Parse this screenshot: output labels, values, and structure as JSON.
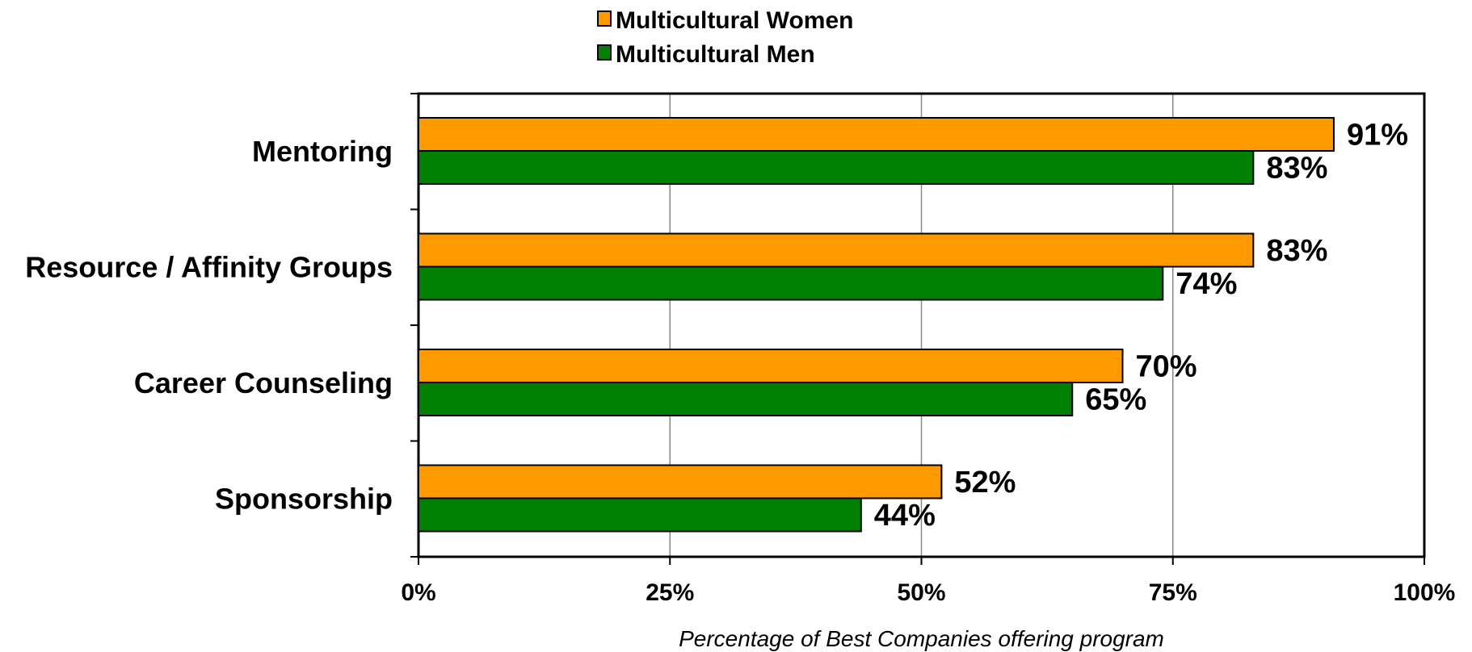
{
  "chart_data": {
    "type": "bar",
    "orientation": "horizontal",
    "title": "",
    "xlabel": "Percentage of Best Companies offering program",
    "ylabel": "",
    "xlim": [
      0,
      100
    ],
    "x_ticks": [
      "0%",
      "25%",
      "50%",
      "75%",
      "100%"
    ],
    "x_tick_values": [
      0,
      25,
      50,
      75,
      100
    ],
    "grid": true,
    "legend_position": "top-center",
    "categories": [
      "Mentoring",
      "Resource / Affinity Groups",
      "Career Counseling",
      "Sponsorship"
    ],
    "series": [
      {
        "name": "Multicultural Women",
        "color": "#FF9900",
        "values": [
          91,
          83,
          70,
          52
        ],
        "labels": [
          "91%",
          "83%",
          "70%",
          "52%"
        ]
      },
      {
        "name": "Multicultural Men",
        "color": "#008000",
        "values": [
          83,
          74,
          65,
          44
        ],
        "labels": [
          "83%",
          "74%",
          "65%",
          "44%"
        ]
      }
    ]
  }
}
